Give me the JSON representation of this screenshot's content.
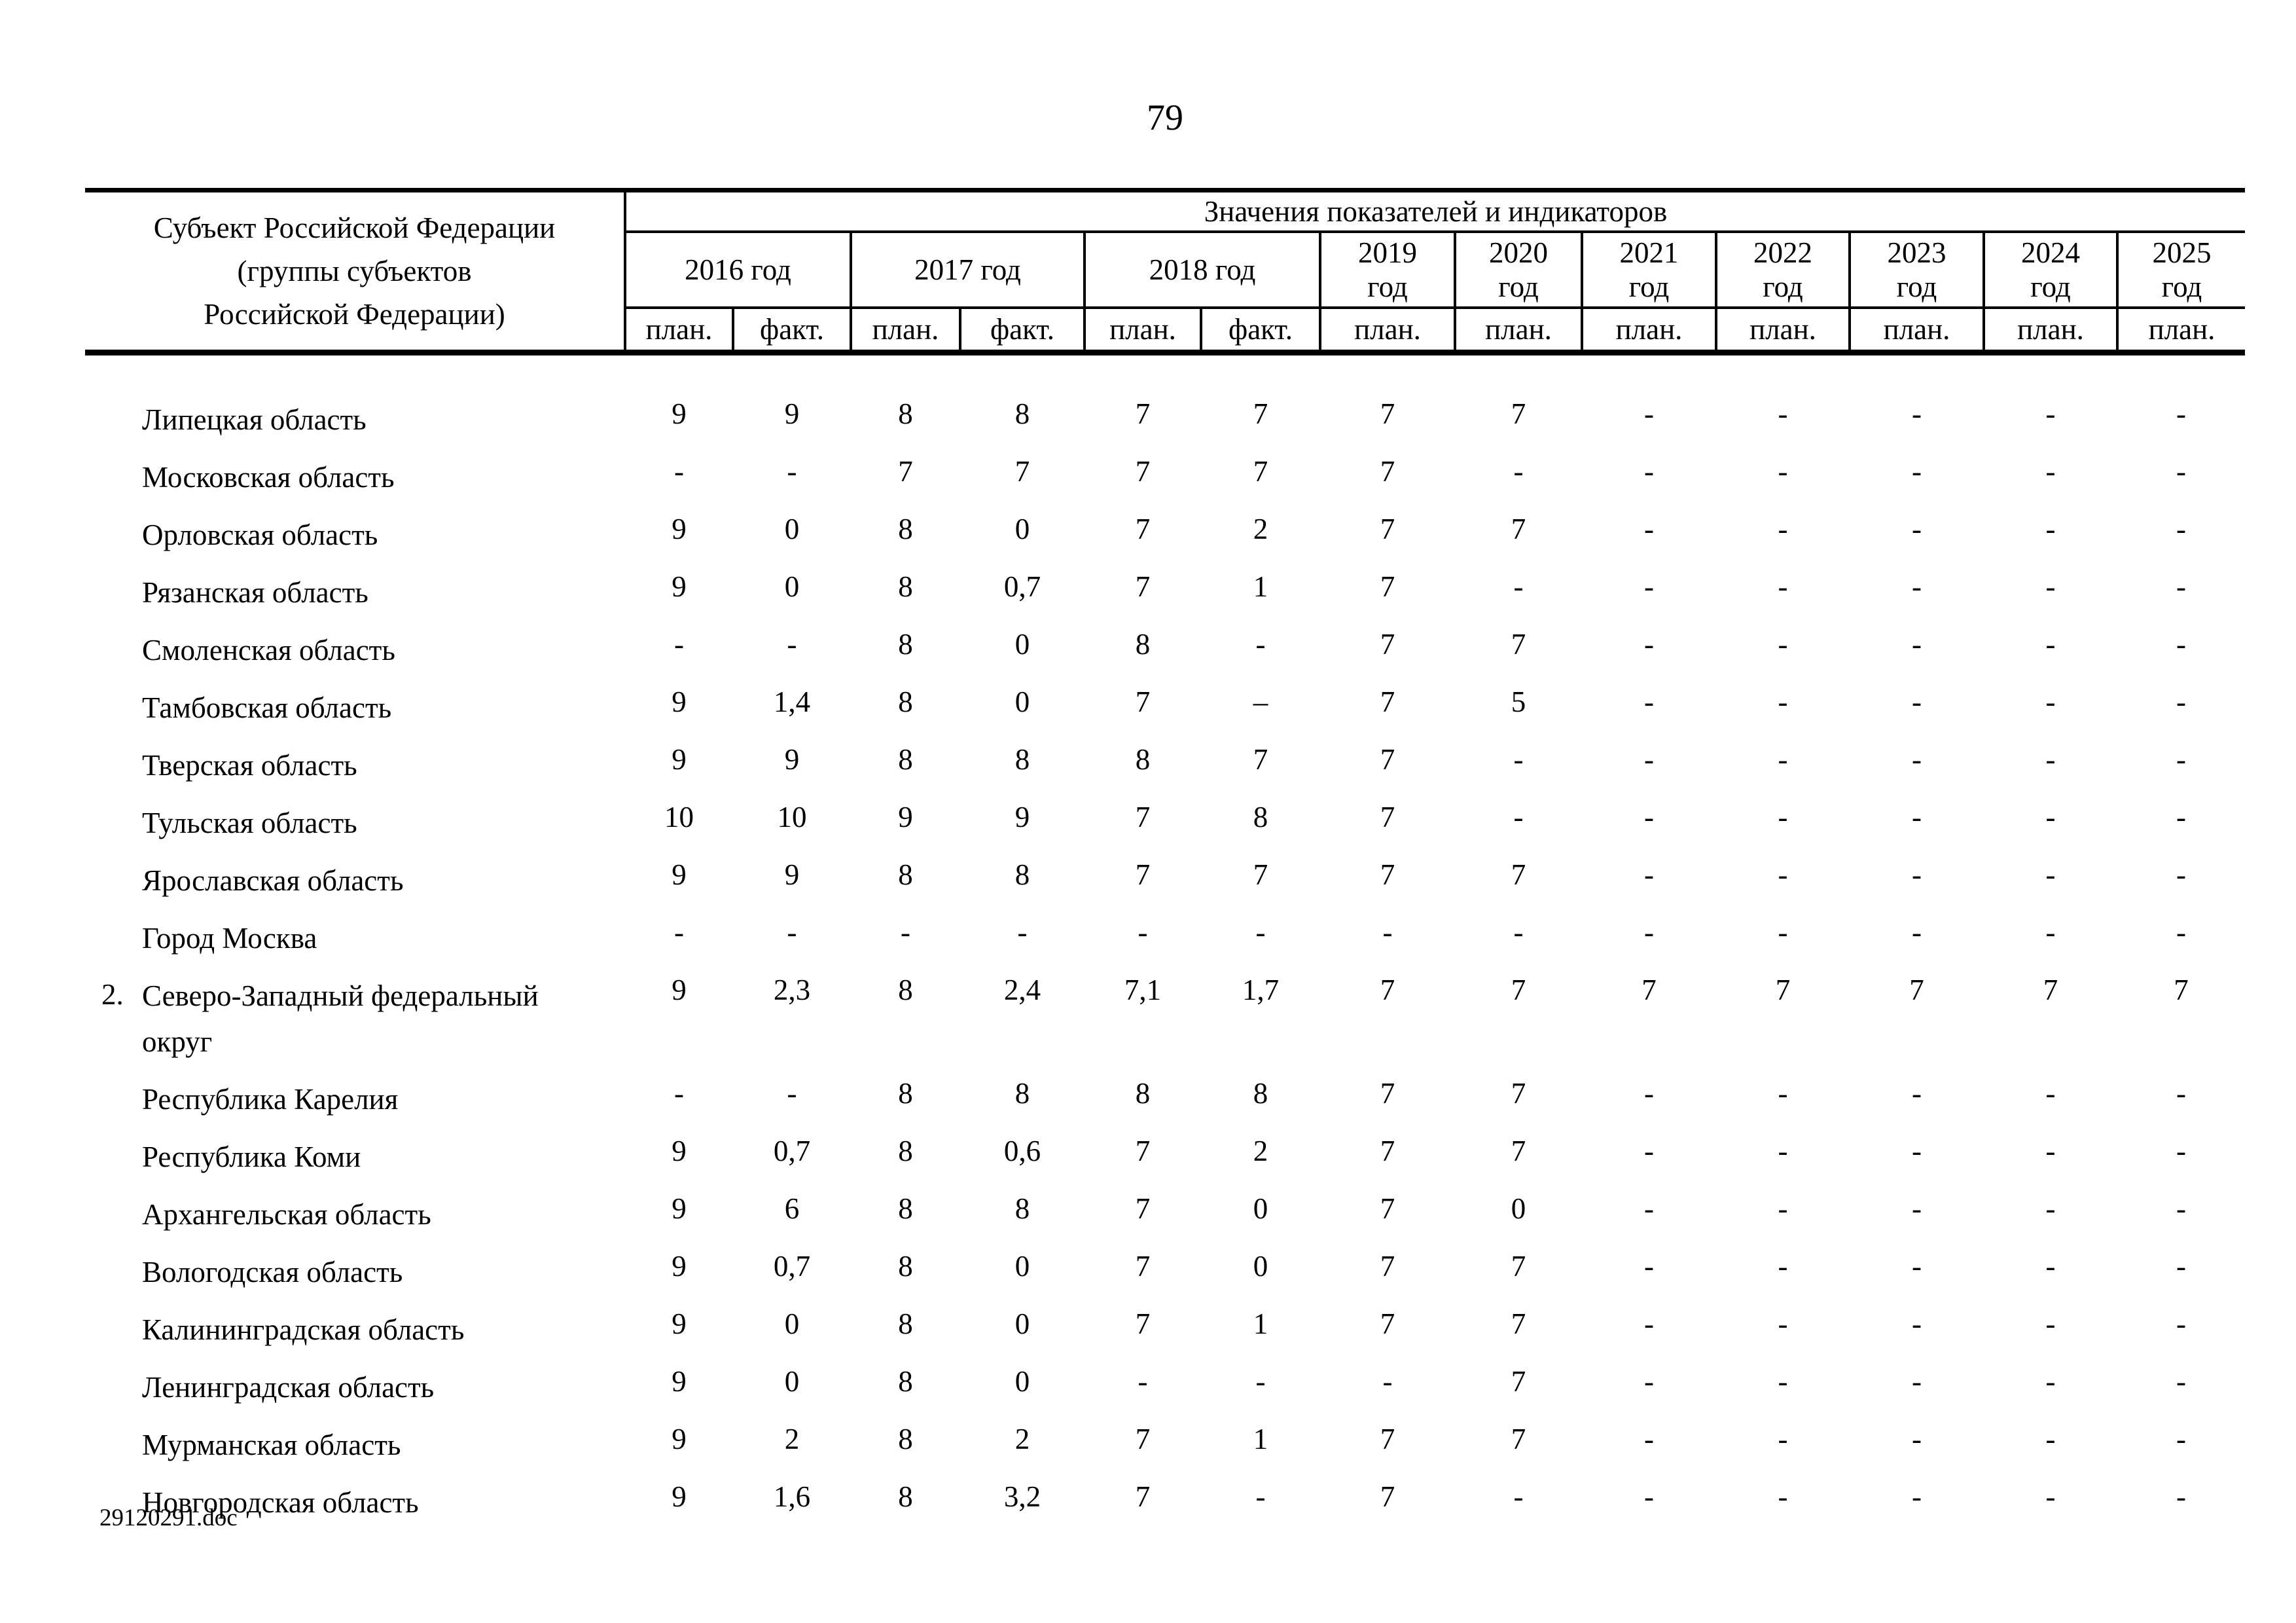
{
  "page": {
    "number": "79",
    "footer": "29120291.doc"
  },
  "table": {
    "subject_header": [
      "Субъект Российской Федерации",
      "(группы субъектов",
      "Российской Федерации)"
    ],
    "values_header": "Значения показателей и индикаторов",
    "year_groups": [
      {
        "label": "2016 год",
        "cols": [
          "план.",
          "факт."
        ]
      },
      {
        "label": "2017 год",
        "cols": [
          "план.",
          "факт."
        ]
      },
      {
        "label": "2018 год",
        "cols": [
          "план.",
          "факт."
        ]
      },
      {
        "label": "2019 год",
        "cols": [
          "план."
        ]
      },
      {
        "label": "2020 год",
        "cols": [
          "план."
        ]
      },
      {
        "label": "2021 год",
        "cols": [
          "план."
        ]
      },
      {
        "label": "2022 год",
        "cols": [
          "план."
        ]
      },
      {
        "label": "2023 год",
        "cols": [
          "план."
        ]
      },
      {
        "label": "2024 год",
        "cols": [
          "план."
        ]
      },
      {
        "label": "2025 год",
        "cols": [
          "план."
        ]
      }
    ],
    "rows": [
      {
        "num": "",
        "name": "Липецкая область",
        "values": [
          "9",
          "9",
          "8",
          "8",
          "7",
          "7",
          "7",
          "7",
          "-",
          "-",
          "-",
          "-",
          "-"
        ]
      },
      {
        "num": "",
        "name": "Московская область",
        "values": [
          "-",
          "-",
          "7",
          "7",
          "7",
          "7",
          "7",
          "-",
          "-",
          "-",
          "-",
          "-",
          "-"
        ]
      },
      {
        "num": "",
        "name": "Орловская область",
        "values": [
          "9",
          "0",
          "8",
          "0",
          "7",
          "2",
          "7",
          "7",
          "-",
          "-",
          "-",
          "-",
          "-"
        ]
      },
      {
        "num": "",
        "name": "Рязанская область",
        "values": [
          "9",
          "0",
          "8",
          "0,7",
          "7",
          "1",
          "7",
          "-",
          "-",
          "-",
          "-",
          "-",
          "-"
        ]
      },
      {
        "num": "",
        "name": "Смоленская область",
        "values": [
          "-",
          "-",
          "8",
          "0",
          "8",
          "-",
          "7",
          "7",
          "-",
          "-",
          "-",
          "-",
          "-"
        ]
      },
      {
        "num": "",
        "name": "Тамбовская область",
        "values": [
          "9",
          "1,4",
          "8",
          "0",
          "7",
          "–",
          "7",
          "5",
          "-",
          "-",
          "-",
          "-",
          "-"
        ]
      },
      {
        "num": "",
        "name": "Тверская область",
        "values": [
          "9",
          "9",
          "8",
          "8",
          "8",
          "7",
          "7",
          "-",
          "-",
          "-",
          "-",
          "-",
          "-"
        ]
      },
      {
        "num": "",
        "name": "Тульская область",
        "values": [
          "10",
          "10",
          "9",
          "9",
          "7",
          "8",
          "7",
          "-",
          "-",
          "-",
          "-",
          "-",
          "-"
        ]
      },
      {
        "num": "",
        "name": "Ярославская область",
        "values": [
          "9",
          "9",
          "8",
          "8",
          "7",
          "7",
          "7",
          "7",
          "-",
          "-",
          "-",
          "-",
          "-"
        ]
      },
      {
        "num": "",
        "name": "Город Москва",
        "values": [
          "-",
          "-",
          "-",
          "-",
          "-",
          "-",
          "-",
          "-",
          "-",
          "-",
          "-",
          "-",
          "-"
        ]
      },
      {
        "num": "2.",
        "name": "Северо-Западный федеральный округ",
        "values": [
          "9",
          "2,3",
          "8",
          "2,4",
          "7,1",
          "1,7",
          "7",
          "7",
          "7",
          "7",
          "7",
          "7",
          "7"
        ]
      },
      {
        "num": "",
        "name": "Республика Карелия",
        "values": [
          "-",
          "-",
          "8",
          "8",
          "8",
          "8",
          "7",
          "7",
          "-",
          "-",
          "-",
          "-",
          "-"
        ]
      },
      {
        "num": "",
        "name": "Республика Коми",
        "values": [
          "9",
          "0,7",
          "8",
          "0,6",
          "7",
          "2",
          "7",
          "7",
          "-",
          "-",
          "-",
          "-",
          "-"
        ]
      },
      {
        "num": "",
        "name": "Архангельская область",
        "values": [
          "9",
          "6",
          "8",
          "8",
          "7",
          "0",
          "7",
          "0",
          "-",
          "-",
          "-",
          "-",
          "-"
        ]
      },
      {
        "num": "",
        "name": "Вологодская область",
        "values": [
          "9",
          "0,7",
          "8",
          "0",
          "7",
          "0",
          "7",
          "7",
          "-",
          "-",
          "-",
          "-",
          "-"
        ]
      },
      {
        "num": "",
        "name": "Калининградская область",
        "values": [
          "9",
          "0",
          "8",
          "0",
          "7",
          "1",
          "7",
          "7",
          "-",
          "-",
          "-",
          "-",
          "-"
        ]
      },
      {
        "num": "",
        "name": "Ленинградская область",
        "values": [
          "9",
          "0",
          "8",
          "0",
          "-",
          "-",
          "-",
          "7",
          "-",
          "-",
          "-",
          "-",
          "-"
        ]
      },
      {
        "num": "",
        "name": "Мурманская область",
        "values": [
          "9",
          "2",
          "8",
          "2",
          "7",
          "1",
          "7",
          "7",
          "-",
          "-",
          "-",
          "-",
          "-"
        ]
      },
      {
        "num": "",
        "name": "Новгородская область",
        "values": [
          "9",
          "1,6",
          "8",
          "3,2",
          "7",
          "-",
          "7",
          "-",
          "-",
          "-",
          "-",
          "-",
          "-"
        ]
      }
    ]
  }
}
